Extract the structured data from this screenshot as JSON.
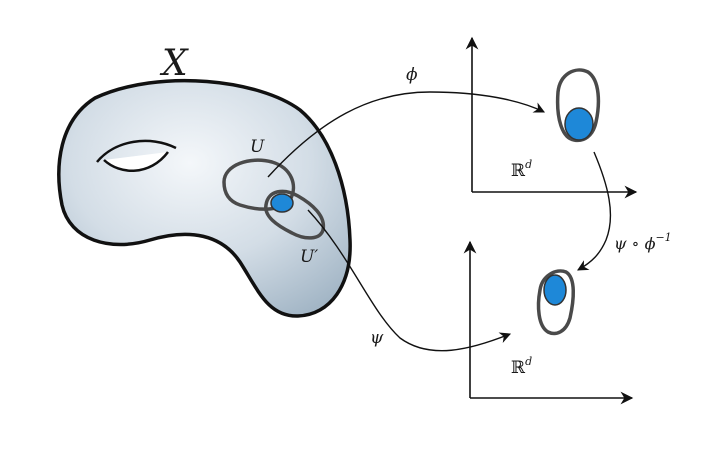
{
  "manifold": {
    "label": "X"
  },
  "charts": {
    "U": {
      "label": "U"
    },
    "U_prime": {
      "label": "U′"
    }
  },
  "maps": {
    "phi": {
      "label": "ϕ"
    },
    "psi": {
      "label": "ψ"
    },
    "transition": {
      "label": "ψ ∘ ϕ",
      "exponent": "−1"
    }
  },
  "spaces": {
    "top": {
      "symbol": "ℝ",
      "exponent": "d"
    },
    "bottom": {
      "symbol": "ℝ",
      "exponent": "d"
    }
  },
  "colors": {
    "surface_light": "#eef2f6",
    "surface_dark": "#a9bccc",
    "overlap_blue": "#1e88d8",
    "chart_outline": "#4a4a4a",
    "ink": "#111111"
  }
}
